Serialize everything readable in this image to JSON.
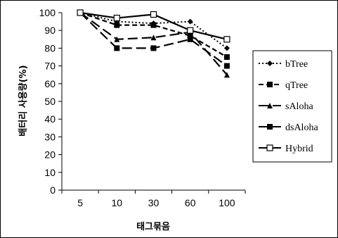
{
  "chart_data": {
    "type": "line",
    "title": "",
    "xlabel": "태그묶음",
    "ylabel": "배터리 사용량(%)",
    "categories": [
      "5",
      "10",
      "30",
      "60",
      "100"
    ],
    "ylim": [
      0,
      100
    ],
    "ytick_step": 10,
    "grid": false,
    "legend_position": "right",
    "series": [
      {
        "name": "bTree",
        "values": [
          100,
          95,
          94,
          95,
          80
        ],
        "color": "#000000",
        "dash": "dotted",
        "marker": "diamond"
      },
      {
        "name": "qTree",
        "values": [
          100,
          93,
          93,
          87,
          75
        ],
        "color": "#000000",
        "dash": "dashed",
        "marker": "square"
      },
      {
        "name": "sAloha",
        "values": [
          100,
          85,
          86,
          89,
          65
        ],
        "color": "#000000",
        "dash": "longdash",
        "marker": "triangle"
      },
      {
        "name": "dsAloha",
        "values": [
          100,
          80,
          80,
          85,
          70
        ],
        "color": "#000000",
        "dash": "longdash",
        "marker": "square"
      },
      {
        "name": "Hybrid",
        "values": [
          100,
          97,
          99,
          90,
          85
        ],
        "color": "#000000",
        "dash": "solid",
        "marker": "open-square"
      }
    ]
  }
}
